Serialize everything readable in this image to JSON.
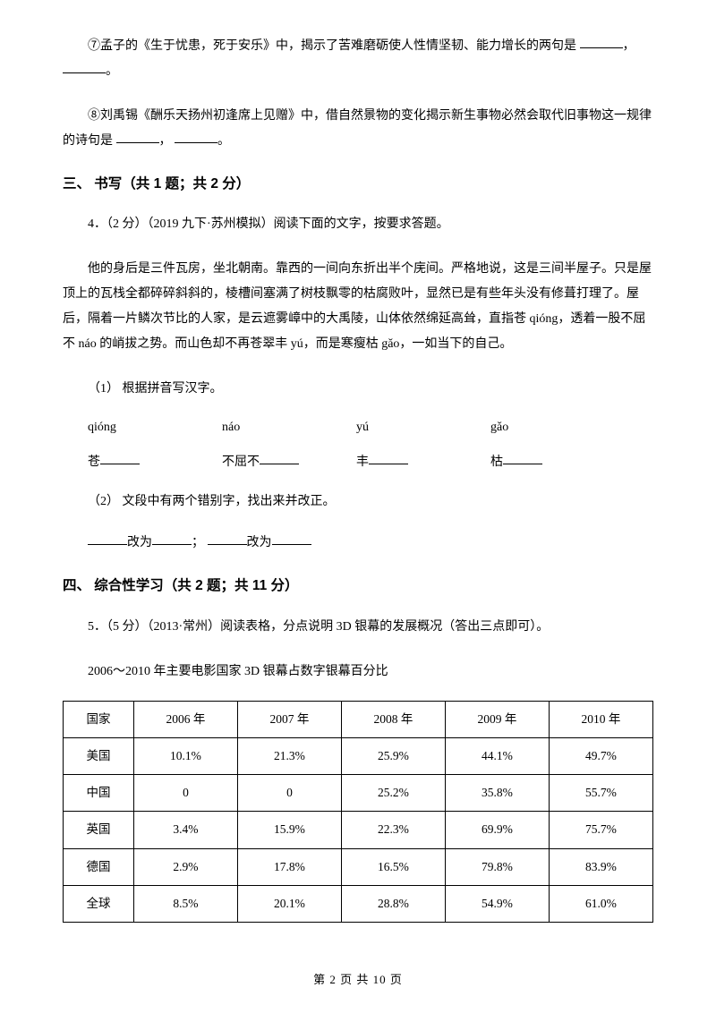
{
  "q7": {
    "text_a": "⑦孟子的《生于忧患，死于安乐》中，揭示了苦难磨砺使人性情坚韧、能力增长的两句是",
    "sep": "，",
    "end": "。"
  },
  "q8": {
    "text_a": "⑧刘禹锡《酬乐天扬州初逢席上见赠》中，借自然景物的变化揭示新生事物必然会取代旧事物这一规律的诗句是",
    "sep": "，",
    "end": "。"
  },
  "section3": "三、 书写（共 1 题；共 2 分）",
  "q4": {
    "stem": "4．（2 分）（2019 九下·苏州模拟）阅读下面的文字，按要求答题。",
    "passage": "他的身后是三件瓦房，坐北朝南。靠西的一间向东折出半个庑间。严格地说，这是三间半屋子。只是屋顶上的瓦栈全都碎碎斜斜的，棱槽间塞满了树枝飘零的枯腐败叶，显然已是有些年头没有修葺打理了。屋后，隔着一片鳞次节比的人家，是云遮雾嶂中的大禹陵，山体依然绵延高耸，直指苍 qióng，透着一股不屈不 náo 的峭拔之势。而山色却不再苍翠丰 yú，而是寒瘦枯 gǎo，一如当下的自己。",
    "sub1": "（1） 根据拼音写汉字。",
    "pinyin": [
      "qióng",
      "náo",
      "yú",
      "gǎo"
    ],
    "hanzi_prefix": [
      "苍",
      "不屈不",
      "丰",
      "枯"
    ],
    "sub2": "（2） 文段中有两个错别字，找出来并改正。",
    "change_label": "改为",
    "semi": "；"
  },
  "section4": "四、 综合性学习（共 2 题；共 11 分）",
  "q5": {
    "stem": "5．（5 分）（2013·常州）阅读表格，分点说明 3D 银幕的发展概况（答出三点即可）。",
    "caption": "2006～2010 年主要电影国家 3D 银幕占数字银幕百分比",
    "headers": [
      "国家",
      "2006 年",
      "2007 年",
      "2008 年",
      "2009 年",
      "2010 年"
    ],
    "rows": [
      [
        "美国",
        "10.1%",
        "21.3%",
        "25.9%",
        "44.1%",
        "49.7%"
      ],
      [
        "中国",
        "0",
        "0",
        "25.2%",
        "35.8%",
        "55.7%"
      ],
      [
        "英国",
        "3.4%",
        "15.9%",
        "22.3%",
        "69.9%",
        "75.7%"
      ],
      [
        "德国",
        "2.9%",
        "17.8%",
        "16.5%",
        "79.8%",
        "83.9%"
      ],
      [
        "全球",
        "8.5%",
        "20.1%",
        "28.8%",
        "54.9%",
        "61.0%"
      ]
    ]
  },
  "footer": "第 2 页 共 10 页"
}
